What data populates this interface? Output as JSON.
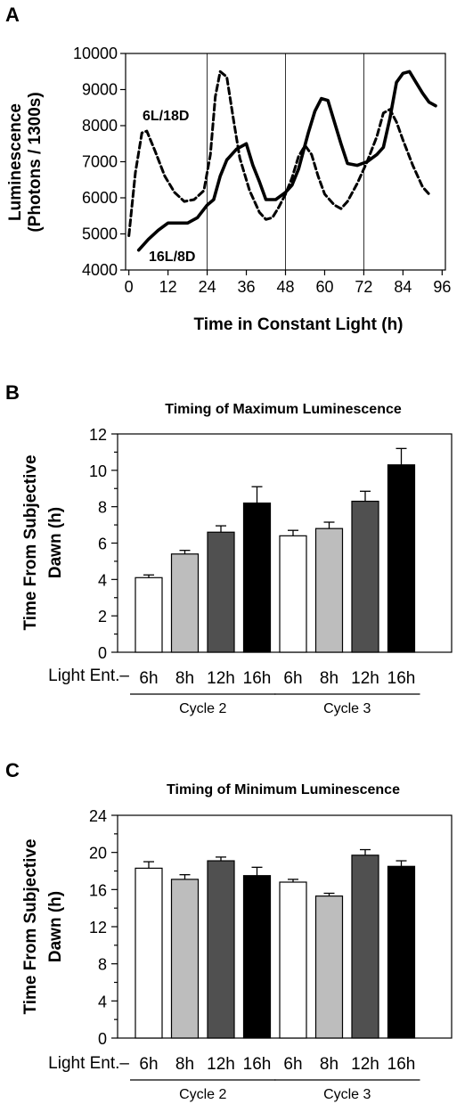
{
  "panels": {
    "a": "A",
    "b": "B",
    "c": "C"
  },
  "chart_data": [
    {
      "type": "line",
      "ylabel_line1": "Luminescence",
      "ylabel_line2": "(Photons / 1300s)",
      "xlabel": "Time in Constant Light (h)",
      "xlim": [
        -1,
        97
      ],
      "ylim": [
        4000,
        10000
      ],
      "xticks": [
        0,
        12,
        24,
        36,
        48,
        60,
        72,
        84,
        96
      ],
      "yticks": [
        4000,
        5000,
        6000,
        7000,
        8000,
        9000,
        10000
      ],
      "vlines": [
        24,
        48,
        72
      ],
      "series": [
        {
          "name": "6L/18D",
          "style": "dashed",
          "points": [
            [
              0,
              4950
            ],
            [
              2,
              6700
            ],
            [
              4,
              7800
            ],
            [
              5.5,
              7850
            ],
            [
              8,
              7300
            ],
            [
              11,
              6600
            ],
            [
              14,
              6150
            ],
            [
              17,
              5900
            ],
            [
              20,
              5950
            ],
            [
              23,
              6200
            ],
            [
              25,
              7200
            ],
            [
              26.5,
              8800
            ],
            [
              28,
              9500
            ],
            [
              30,
              9350
            ],
            [
              32,
              8200
            ],
            [
              34,
              7100
            ],
            [
              37,
              6200
            ],
            [
              40,
              5600
            ],
            [
              42,
              5400
            ],
            [
              44,
              5450
            ],
            [
              46,
              5750
            ],
            [
              48,
              6100
            ],
            [
              50,
              6550
            ],
            [
              52,
              7150
            ],
            [
              54,
              7450
            ],
            [
              56,
              7200
            ],
            [
              58,
              6600
            ],
            [
              60,
              6100
            ],
            [
              63,
              5800
            ],
            [
              65,
              5700
            ],
            [
              67,
              5900
            ],
            [
              70,
              6400
            ],
            [
              73,
              7000
            ],
            [
              76,
              7700
            ],
            [
              78,
              8350
            ],
            [
              80,
              8450
            ],
            [
              82,
              8100
            ],
            [
              84,
              7600
            ],
            [
              87,
              6900
            ],
            [
              90,
              6300
            ],
            [
              92,
              6100
            ]
          ]
        },
        {
          "name": "16L/8D",
          "style": "solid",
          "points": [
            [
              3,
              4550
            ],
            [
              6,
              4850
            ],
            [
              9,
              5100
            ],
            [
              12,
              5300
            ],
            [
              15,
              5300
            ],
            [
              18,
              5300
            ],
            [
              21,
              5450
            ],
            [
              24,
              5800
            ],
            [
              26,
              5950
            ],
            [
              28,
              6600
            ],
            [
              30,
              7050
            ],
            [
              33,
              7350
            ],
            [
              36,
              7500
            ],
            [
              38,
              6900
            ],
            [
              40,
              6450
            ],
            [
              42,
              5950
            ],
            [
              45,
              5950
            ],
            [
              48,
              6150
            ],
            [
              50,
              6350
            ],
            [
              52,
              6800
            ],
            [
              55,
              7800
            ],
            [
              57,
              8400
            ],
            [
              59,
              8750
            ],
            [
              61,
              8700
            ],
            [
              63,
              8100
            ],
            [
              65,
              7500
            ],
            [
              67,
              6950
            ],
            [
              70,
              6900
            ],
            [
              73,
              7000
            ],
            [
              76,
              7200
            ],
            [
              78,
              7400
            ],
            [
              80,
              8200
            ],
            [
              82,
              9200
            ],
            [
              84,
              9450
            ],
            [
              86,
              9500
            ],
            [
              88,
              9200
            ],
            [
              90,
              8900
            ],
            [
              92,
              8650
            ],
            [
              94,
              8550
            ]
          ]
        }
      ]
    },
    {
      "type": "bar",
      "title": "Timing of Maximum Luminescence",
      "ylabel_line1": "Time From Subjective",
      "ylabel_line2": "Dawn (h)",
      "row_label": "Light Ent.–",
      "categories": [
        "6h",
        "8h",
        "12h",
        "16h",
        "6h",
        "8h",
        "12h",
        "16h"
      ],
      "groups": [
        "Cycle 2",
        "Cycle 3"
      ],
      "values": [
        4.1,
        5.4,
        6.6,
        8.2,
        6.4,
        6.8,
        8.3,
        10.3
      ],
      "errors": [
        0.15,
        0.2,
        0.35,
        0.9,
        0.3,
        0.35,
        0.55,
        0.9
      ],
      "colors": [
        "#ffffff",
        "#bdbdbd",
        "#505050",
        "#000000",
        "#ffffff",
        "#bdbdbd",
        "#505050",
        "#000000"
      ],
      "ylim": [
        0,
        12
      ],
      "yticks": [
        0,
        2,
        4,
        6,
        8,
        10,
        12
      ]
    },
    {
      "type": "bar",
      "title": "Timing of Minimum Luminescence",
      "ylabel_line1": "Time From Subjective",
      "ylabel_line2": "Dawn (h)",
      "row_label": "Light Ent.–",
      "categories": [
        "6h",
        "8h",
        "12h",
        "16h",
        "6h",
        "8h",
        "12h",
        "16h"
      ],
      "groups": [
        "Cycle 2",
        "Cycle 3"
      ],
      "values": [
        18.3,
        17.1,
        19.1,
        17.5,
        16.8,
        15.3,
        19.7,
        18.5
      ],
      "errors": [
        0.7,
        0.5,
        0.4,
        0.9,
        0.3,
        0.3,
        0.6,
        0.6
      ],
      "colors": [
        "#ffffff",
        "#bdbdbd",
        "#505050",
        "#000000",
        "#ffffff",
        "#bdbdbd",
        "#505050",
        "#000000"
      ],
      "ylim": [
        0,
        24
      ],
      "yticks": [
        0,
        4,
        8,
        12,
        16,
        20,
        24
      ]
    }
  ]
}
